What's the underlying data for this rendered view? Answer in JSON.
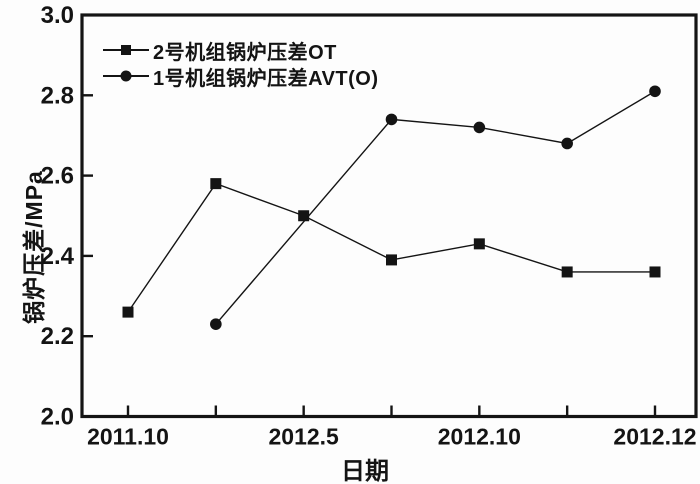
{
  "figure": {
    "background": "#fdfdfd",
    "ink_color": "#141414"
  },
  "chart_data": {
    "type": "line",
    "title": "",
    "xlabel": "日期",
    "ylabel": "锅炉压差/MPa",
    "ylim": [
      2.0,
      3.0
    ],
    "yticks": [
      2.0,
      2.2,
      2.4,
      2.6,
      2.8,
      3.0
    ],
    "ytick_decimals": 1,
    "x_slot_count": 7,
    "xticks": [
      {
        "slot": 0,
        "label": "2011.10"
      },
      {
        "slot": 2,
        "label": "2012.5"
      },
      {
        "slot": 4,
        "label": "2012.10"
      },
      {
        "slot": 6,
        "label": "2012.12"
      }
    ],
    "grid": false,
    "legend_position": "top-left",
    "series": [
      {
        "name": "2号机组锅炉压差OT",
        "marker": "square",
        "color": "#141414",
        "points": [
          {
            "slot": 0,
            "y": 2.26
          },
          {
            "slot": 1,
            "y": 2.58
          },
          {
            "slot": 2,
            "y": 2.5
          },
          {
            "slot": 3,
            "y": 2.39
          },
          {
            "slot": 4,
            "y": 2.43
          },
          {
            "slot": 5,
            "y": 2.36
          },
          {
            "slot": 6,
            "y": 2.36
          }
        ]
      },
      {
        "name": "1号机组锅炉压差AVT(O)",
        "marker": "circle",
        "color": "#141414",
        "points": [
          {
            "slot": 1,
            "y": 2.23
          },
          {
            "slot": 3,
            "y": 2.74
          },
          {
            "slot": 4,
            "y": 2.72
          },
          {
            "slot": 5,
            "y": 2.68
          },
          {
            "slot": 6,
            "y": 2.81
          }
        ]
      }
    ]
  }
}
